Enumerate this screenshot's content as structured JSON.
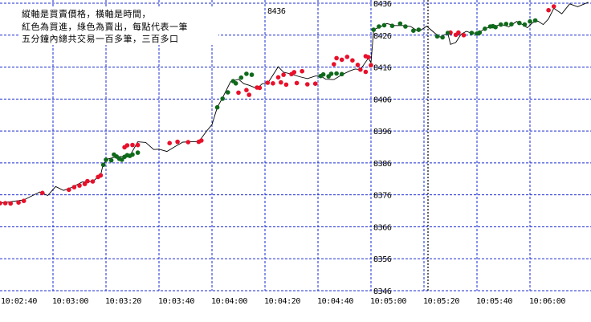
{
  "chart_data": {
    "type": "scatter",
    "annotation_lines": [
      "縱軸是買賣價格，橫軸是時間，",
      "紅色為買進，綠色為賣出，每點代表一筆",
      "五分鐘內總共交易一百多筆，三百多口"
    ],
    "partial_top_label": "8436",
    "x_ticks": [
      "10:02:40",
      "10:03:00",
      "10:03:20",
      "10:03:40",
      "10:04:00",
      "10:04:20",
      "10:04:40",
      "10:05:00",
      "10:05:20",
      "10:05:40",
      "10:06:00"
    ],
    "y_ticks": [
      8436,
      8426,
      8416,
      8406,
      8396,
      8386,
      8376,
      8366,
      8356,
      8346
    ],
    "ylim": [
      8346,
      8437
    ],
    "x_unit": "seconds after 10:02:40",
    "xlim": [
      0,
      223
    ],
    "grid": true,
    "series": [
      {
        "color": "#e8102a",
        "points": [
          [
            0,
            8373.4
          ],
          [
            2,
            8373.4
          ],
          [
            4,
            8373.3
          ],
          [
            7,
            8373.6
          ],
          [
            9,
            8374.1
          ],
          [
            16,
            8376.6
          ],
          [
            26,
            8377.6
          ],
          [
            28,
            8378.4
          ],
          [
            30,
            8378.9
          ],
          [
            32,
            8379.4
          ],
          [
            33,
            8380.3
          ],
          [
            35,
            8380.2
          ],
          [
            37,
            8381.6
          ],
          [
            38,
            8382.1
          ],
          [
            47,
            8390.9
          ],
          [
            48,
            8391.5
          ],
          [
            50,
            8391.6
          ],
          [
            52,
            8391.6
          ],
          [
            64,
            8392.2
          ],
          [
            67,
            8392.6
          ],
          [
            71,
            8392.5
          ],
          [
            75,
            8392.6
          ],
          [
            76,
            8393.0
          ],
          [
            90,
            8408.0
          ],
          [
            93,
            8408.8
          ],
          [
            94,
            8407.3
          ],
          [
            97,
            8409.6
          ],
          [
            98,
            8409.5
          ],
          [
            101,
            8411.1
          ],
          [
            103,
            8410.9
          ],
          [
            105,
            8412.8
          ],
          [
            107,
            8413.6
          ],
          [
            110,
            8413.8
          ],
          [
            111,
            8414.4
          ],
          [
            114,
            8414.7
          ],
          [
            106,
            8411.2
          ],
          [
            108,
            8410.5
          ],
          [
            112,
            8411.0
          ],
          [
            116,
            8410.6
          ],
          [
            119,
            8410.8
          ],
          [
            126,
            8416.9
          ],
          [
            127,
            8418.8
          ],
          [
            129,
            8418.3
          ],
          [
            131,
            8419.2
          ],
          [
            133,
            8418.1
          ],
          [
            135,
            8416.7
          ],
          [
            138,
            8419.4
          ],
          [
            139,
            8419.1
          ],
          [
            140,
            8416.6
          ],
          [
            136,
            8415.2
          ],
          [
            138,
            8414.5
          ],
          [
            170,
            8426.8
          ],
          [
            172,
            8426.1
          ],
          [
            173,
            8426.8
          ],
          [
            175,
            8426.0
          ],
          [
            207,
            8433.8
          ],
          [
            209,
            8435.0
          ]
        ]
      },
      {
        "color": "#0e6a1a",
        "points": [
          [
            39,
            8385.4
          ],
          [
            40,
            8387.0
          ],
          [
            42,
            8386.8
          ],
          [
            43,
            8388.6
          ],
          [
            44,
            8388.0
          ],
          [
            45,
            8387.3
          ],
          [
            46,
            8387.0
          ],
          [
            47,
            8387.9
          ],
          [
            48,
            8388.4
          ],
          [
            49,
            8388.2
          ],
          [
            50,
            8388.6
          ],
          [
            52,
            8389.2
          ],
          [
            82,
            8403.4
          ],
          [
            84,
            8406.1
          ],
          [
            86,
            8408.1
          ],
          [
            88,
            8411.6
          ],
          [
            89,
            8410.9
          ],
          [
            91,
            8412.7
          ],
          [
            93,
            8413.9
          ],
          [
            95,
            8413.6
          ],
          [
            121,
            8413.2
          ],
          [
            122,
            8413.7
          ],
          [
            124,
            8413.1
          ],
          [
            125,
            8413.9
          ],
          [
            127,
            8414.0
          ],
          [
            129,
            8413.8
          ],
          [
            141,
            8427.7
          ],
          [
            143,
            8428.7
          ],
          [
            145,
            8429.1
          ],
          [
            148,
            8428.9
          ],
          [
            151,
            8429.6
          ],
          [
            153,
            8428.7
          ],
          [
            156,
            8427.4
          ],
          [
            158,
            8427.7
          ],
          [
            165,
            8425.6
          ],
          [
            167,
            8425.3
          ],
          [
            169,
            8426.7
          ],
          [
            178,
            8426.7
          ],
          [
            180,
            8426.5
          ],
          [
            181,
            8426.8
          ],
          [
            183,
            8428.0
          ],
          [
            185,
            8428.7
          ],
          [
            186,
            8428.8
          ],
          [
            187,
            8428.5
          ],
          [
            189,
            8429.3
          ],
          [
            191,
            8429.5
          ],
          [
            193,
            8429.4
          ],
          [
            196,
            8429.8
          ],
          [
            198,
            8429.3
          ],
          [
            200,
            8430.3
          ],
          [
            202,
            8430.6
          ]
        ]
      }
    ],
    "trend_line": [
      [
        0,
        8373.4
      ],
      [
        9,
        8374.4
      ],
      [
        15,
        8376.9
      ],
      [
        18,
        8375.8
      ],
      [
        21,
        8378.6
      ],
      [
        24,
        8377.4
      ],
      [
        27,
        8378.3
      ],
      [
        31,
        8380.0
      ],
      [
        35,
        8380.2
      ],
      [
        38,
        8382.3
      ],
      [
        39,
        8385.8
      ],
      [
        41,
        8387.3
      ],
      [
        44,
        8387.9
      ],
      [
        49,
        8388.2
      ],
      [
        52,
        8392.6
      ],
      [
        55,
        8392.4
      ],
      [
        58,
        8390.2
      ],
      [
        60,
        8390.3
      ],
      [
        63,
        8389.6
      ],
      [
        66,
        8391.1
      ],
      [
        69,
        8392.5
      ],
      [
        72,
        8392.6
      ],
      [
        75,
        8392.6
      ],
      [
        78,
        8396.0
      ],
      [
        80,
        8398.0
      ],
      [
        82,
        8403.4
      ],
      [
        84,
        8406.4
      ],
      [
        87,
        8411.4
      ],
      [
        90,
        8412.2
      ],
      [
        92,
        8410.8
      ],
      [
        94,
        8410.3
      ],
      [
        97,
        8409.3
      ],
      [
        99,
        8410.8
      ],
      [
        101,
        8410.9
      ],
      [
        103,
        8413.5
      ],
      [
        105,
        8416.1
      ],
      [
        107,
        8414.4
      ],
      [
        110,
        8413.8
      ],
      [
        113,
        8413.0
      ],
      [
        116,
        8412.4
      ],
      [
        119,
        8413.2
      ],
      [
        121,
        8413.2
      ],
      [
        123,
        8412.2
      ],
      [
        126,
        8412.1
      ],
      [
        129,
        8413.6
      ],
      [
        132,
        8414.8
      ],
      [
        134,
        8415.4
      ],
      [
        136,
        8415.2
      ],
      [
        139,
        8418.8
      ],
      [
        140,
        8417.4
      ],
      [
        141,
        8427.7
      ],
      [
        143,
        8428.4
      ],
      [
        146,
        8429.6
      ],
      [
        149,
        8429.0
      ],
      [
        152,
        8429.0
      ],
      [
        155,
        8428.7
      ],
      [
        158,
        8427.1
      ],
      [
        161,
        8428.8
      ],
      [
        164,
        8426.7
      ],
      [
        166,
        8425.4
      ],
      [
        169,
        8426.6
      ],
      [
        170,
        8423.1
      ],
      [
        172,
        8423.7
      ],
      [
        174,
        8426.3
      ],
      [
        176,
        8427.2
      ],
      [
        178,
        8426.6
      ],
      [
        181,
        8426.8
      ],
      [
        183,
        8428.2
      ],
      [
        186,
        8428.5
      ],
      [
        189,
        8429.4
      ],
      [
        192,
        8428.6
      ],
      [
        195,
        8430.3
      ],
      [
        197,
        8429.4
      ],
      [
        199,
        8428.3
      ],
      [
        201,
        8429.9
      ],
      [
        203,
        8430.4
      ],
      [
        205,
        8429.3
      ],
      [
        207,
        8431.1
      ],
      [
        209,
        8434.4
      ],
      [
        212,
        8432.7
      ],
      [
        215,
        8435.8
      ],
      [
        218,
        8434.9
      ],
      [
        222,
        8436.3
      ]
    ]
  }
}
